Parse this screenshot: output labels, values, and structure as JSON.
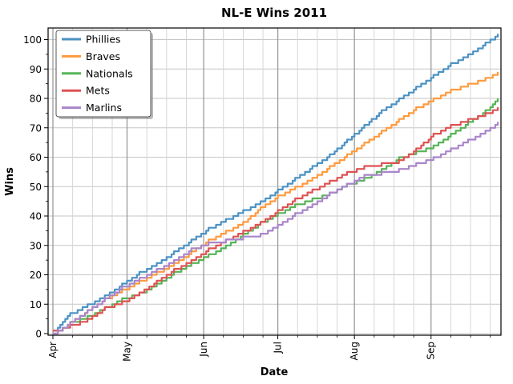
{
  "figure": {
    "title": "NL-E Wins 2011",
    "xlabel": "Date",
    "ylabel": "Wins"
  },
  "chart_data": {
    "type": "line",
    "title": "NL-E Wins 2011",
    "xlabel": "Date",
    "ylabel": "Wins",
    "grid": true,
    "legend": {
      "position": "upper left",
      "entries": [
        "Phillies",
        "Braves",
        "Nationals",
        "Mets",
        "Marlins"
      ]
    },
    "x_axis": {
      "tick_labels": [
        "Apr",
        "May",
        "Jun",
        "Jul",
        "Aug",
        "Sep"
      ],
      "tick_day_offsets": [
        0,
        30,
        61,
        91,
        122,
        153
      ],
      "minor_days_in_month": [
        8,
        16,
        24
      ],
      "range_days": [
        -2,
        181
      ]
    },
    "y_axis": {
      "ticks": [
        0,
        10,
        20,
        30,
        40,
        50,
        60,
        70,
        80,
        90,
        100
      ],
      "minor_step": 5,
      "range": [
        0,
        104
      ]
    },
    "sample_dates": [
      "Apr 1",
      "Apr 8",
      "Apr 15",
      "Apr 22",
      "Apr 29",
      "May 6",
      "May 13",
      "May 20",
      "May 27",
      "Jun 3",
      "Jun 10",
      "Jun 17",
      "Jun 24",
      "Jul 1",
      "Jul 8",
      "Jul 15",
      "Jul 22",
      "Jul 29",
      "Aug 5",
      "Aug 12",
      "Aug 19",
      "Aug 26",
      "Sep 2",
      "Sep 9",
      "Sep 16",
      "Sep 23",
      "Sep 28"
    ],
    "sample_day_offsets": [
      0,
      7,
      14,
      21,
      28,
      35,
      42,
      49,
      56,
      63,
      70,
      77,
      84,
      91,
      98,
      105,
      112,
      119,
      126,
      133,
      140,
      147,
      154,
      161,
      168,
      175,
      180
    ],
    "series": [
      {
        "name": "Phillies",
        "color": "#4C92C3",
        "final_wins": 102,
        "values": [
          1,
          7,
          10,
          13,
          17,
          21,
          24,
          28,
          32,
          36,
          39,
          42,
          45,
          49,
          53,
          57,
          61,
          66,
          71,
          76,
          80,
          84,
          88,
          92,
          95,
          99,
          102
        ]
      },
      {
        "name": "Braves",
        "color": "#FF9A3E",
        "final_wins": 89,
        "values": [
          0,
          4,
          8,
          12,
          15,
          18,
          21,
          24,
          28,
          32,
          35,
          38,
          43,
          47,
          50,
          53,
          57,
          61,
          65,
          69,
          73,
          77,
          80,
          83,
          85,
          87,
          89
        ]
      },
      {
        "name": "Nationals",
        "color": "#56B356",
        "final_wins": 80,
        "values": [
          0,
          4,
          6,
          9,
          12,
          14,
          17,
          21,
          24,
          27,
          30,
          34,
          38,
          41,
          44,
          46,
          48,
          51,
          53,
          56,
          60,
          62,
          64,
          68,
          72,
          76,
          80
        ]
      },
      {
        "name": "Mets",
        "color": "#DE5253",
        "final_wins": 77,
        "values": [
          1,
          3,
          5,
          9,
          11,
          14,
          18,
          22,
          25,
          29,
          32,
          35,
          38,
          42,
          46,
          49,
          52,
          55,
          57,
          58,
          59,
          63,
          68,
          71,
          73,
          75,
          77
        ]
      },
      {
        "name": "Marlins",
        "color": "#A985CA",
        "final_wins": 72,
        "values": [
          0,
          4,
          8,
          12,
          16,
          19,
          22,
          25,
          29,
          31,
          32,
          33,
          34,
          37,
          41,
          44,
          48,
          51,
          54,
          55,
          56,
          58,
          60,
          63,
          66,
          69,
          72
        ]
      }
    ],
    "colors": {
      "grid_major_x": "#9a9a9a",
      "grid_minor_x": "#d2d2d2",
      "grid_y": "#c6c6c6",
      "frame": "#000000",
      "legend_border": "#555555",
      "legend_shadow": "#7f7f7f"
    }
  }
}
